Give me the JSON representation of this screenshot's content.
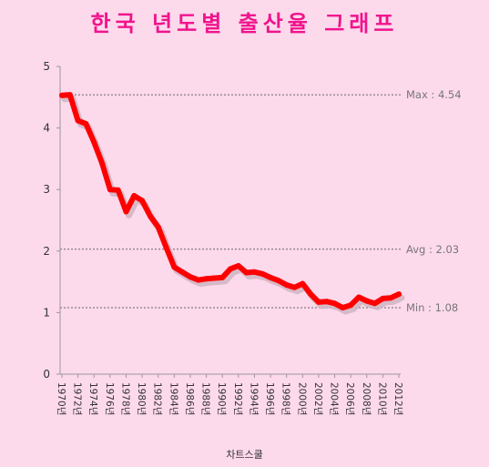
{
  "title": "한국 년도별 출산율 그래프",
  "footer": "차트스쿨",
  "colors": {
    "background": "#fdd9ec",
    "title": "#f0148c",
    "line": "#ff0000",
    "shadow": "#cfb4c2",
    "reference": "#777777"
  },
  "chart_data": {
    "type": "line",
    "ylim": [
      0,
      5
    ],
    "yticks": [
      "0",
      "1",
      "2",
      "3",
      "4",
      "5"
    ],
    "x": [
      "1970",
      "1971",
      "1972",
      "1973",
      "1974",
      "1975",
      "1976",
      "1977",
      "1978",
      "1979",
      "1980",
      "1981",
      "1982",
      "1983",
      "1984",
      "1985",
      "1986",
      "1987",
      "1988",
      "1989",
      "1990",
      "1991",
      "1992",
      "1993",
      "1994",
      "1995",
      "1996",
      "1997",
      "1998",
      "1999",
      "2000",
      "2001",
      "2002",
      "2003",
      "2004",
      "2005",
      "2006",
      "2007",
      "2008",
      "2009",
      "2010",
      "2011",
      "2012"
    ],
    "xtick_labels": [
      "1970년",
      "1972년",
      "1974년",
      "1976년",
      "1978년",
      "1980년",
      "1982년",
      "1984년",
      "1986년",
      "1988년",
      "1990년",
      "1992년",
      "1994년",
      "1996년",
      "1998년",
      "2000년",
      "2002년",
      "2004년",
      "2006년",
      "2008년",
      "2010년",
      "2012년"
    ],
    "series": [
      {
        "values": [
          4.53,
          4.54,
          4.12,
          4.07,
          3.77,
          3.43,
          3.0,
          2.99,
          2.64,
          2.9,
          2.82,
          2.57,
          2.39,
          2.06,
          1.74,
          1.66,
          1.58,
          1.53,
          1.55,
          1.56,
          1.57,
          1.71,
          1.76,
          1.65,
          1.66,
          1.63,
          1.57,
          1.52,
          1.45,
          1.41,
          1.47,
          1.3,
          1.17,
          1.18,
          1.15,
          1.08,
          1.12,
          1.25,
          1.19,
          1.15,
          1.23,
          1.24,
          1.3
        ]
      }
    ],
    "reference_lines": [
      {
        "label": "Max : 4.54",
        "value": 4.54
      },
      {
        "label": "Avg : 2.03",
        "value": 2.03
      },
      {
        "label": "Min : 1.08",
        "value": 1.08
      }
    ],
    "grid": false,
    "legend": "none"
  }
}
